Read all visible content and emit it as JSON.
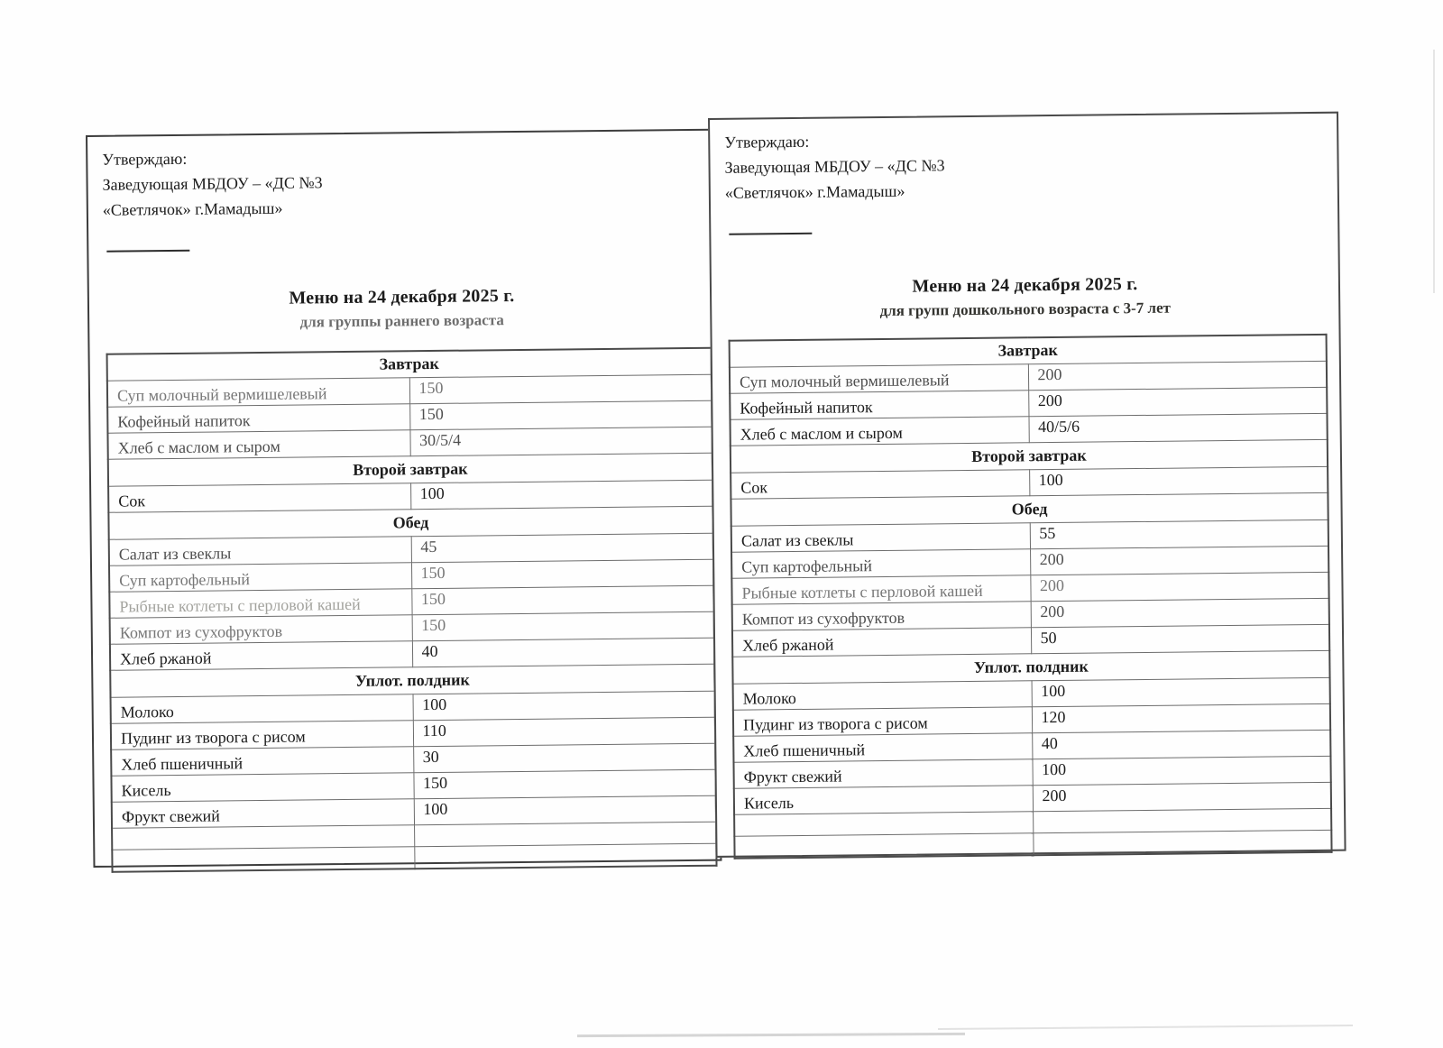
{
  "page": {
    "panels": [
      {
        "id": "early-age",
        "approval": {
          "line1": "Утверждаю:",
          "line2": "Заведующая МБДОУ – «ДС №3",
          "line3": "«Светлячок» г.Мамадыш»"
        },
        "title": "Меню на 24 декабря 2025 г.",
        "subtitle": "для группы раннего возраста",
        "sections": [
          {
            "header": "Завтрак",
            "items": [
              {
                "dish": "Суп молочный вермишелевый",
                "amount": "150"
              },
              {
                "dish": "Кофейный напиток",
                "amount": "150"
              },
              {
                "dish": "Хлеб с маслом и сыром",
                "amount": "30/5/4"
              }
            ]
          },
          {
            "header": "Второй завтрак",
            "items": [
              {
                "dish": "Сок",
                "amount": "100"
              }
            ]
          },
          {
            "header": "Обед",
            "items": [
              {
                "dish": "Салат из свеклы",
                "amount": "45"
              },
              {
                "dish": "Суп картофельный",
                "amount": "150"
              },
              {
                "dish": "Рыбные котлеты с перловой кашей",
                "amount": "150"
              },
              {
                "dish": "Компот из сухофруктов",
                "amount": "150"
              },
              {
                "dish": "Хлеб ржаной",
                "amount": "40"
              }
            ]
          },
          {
            "header": "Уплот. полдник",
            "items": [
              {
                "dish": "Молоко",
                "amount": "100"
              },
              {
                "dish": "Пудинг из творога с рисом",
                "amount": "110"
              },
              {
                "dish": "Хлеб пшеничный",
                "amount": "30"
              },
              {
                "dish": "Кисель",
                "amount": "150"
              },
              {
                "dish": "Фрукт свежий",
                "amount": "100"
              }
            ]
          }
        ],
        "trailing_empty_rows": 2
      },
      {
        "id": "preschool",
        "approval": {
          "line1": "Утверждаю:",
          "line2": "Заведующая МБДОУ – «ДС №3",
          "line3": "«Светлячок» г.Мамадыш»"
        },
        "title": "Меню на 24 декабря 2025 г.",
        "subtitle": "для групп дошкольного возраста с 3-7 лет",
        "sections": [
          {
            "header": "Завтрак",
            "items": [
              {
                "dish": "Суп молочный вермишелевый",
                "amount": "200"
              },
              {
                "dish": "Кофейный напиток",
                "amount": "200"
              },
              {
                "dish": "Хлеб с маслом и сыром",
                "amount": "40/5/6"
              }
            ]
          },
          {
            "header": "Второй завтрак",
            "items": [
              {
                "dish": "Сок",
                "amount": "100"
              }
            ]
          },
          {
            "header": "Обед",
            "items": [
              {
                "dish": "Салат из свеклы",
                "amount": "55"
              },
              {
                "dish": "Суп картофельный",
                "amount": "200"
              },
              {
                "dish": "Рыбные котлеты с перловой кашей",
                "amount": "200"
              },
              {
                "dish": "Компот из сухофруктов",
                "amount": "200"
              },
              {
                "dish": "Хлеб ржаной",
                "amount": "50"
              }
            ]
          },
          {
            "header": "Уплот. полдник",
            "items": [
              {
                "dish": "Молоко",
                "amount": "100"
              },
              {
                "dish": "Пудинг из творога с рисом",
                "amount": "120"
              },
              {
                "dish": "Хлеб пшеничный",
                "amount": "40"
              },
              {
                "dish": "Фрукт свежий",
                "amount": "100"
              },
              {
                "dish": "Кисель",
                "amount": "200"
              }
            ]
          }
        ],
        "trailing_empty_rows": 2
      }
    ]
  }
}
